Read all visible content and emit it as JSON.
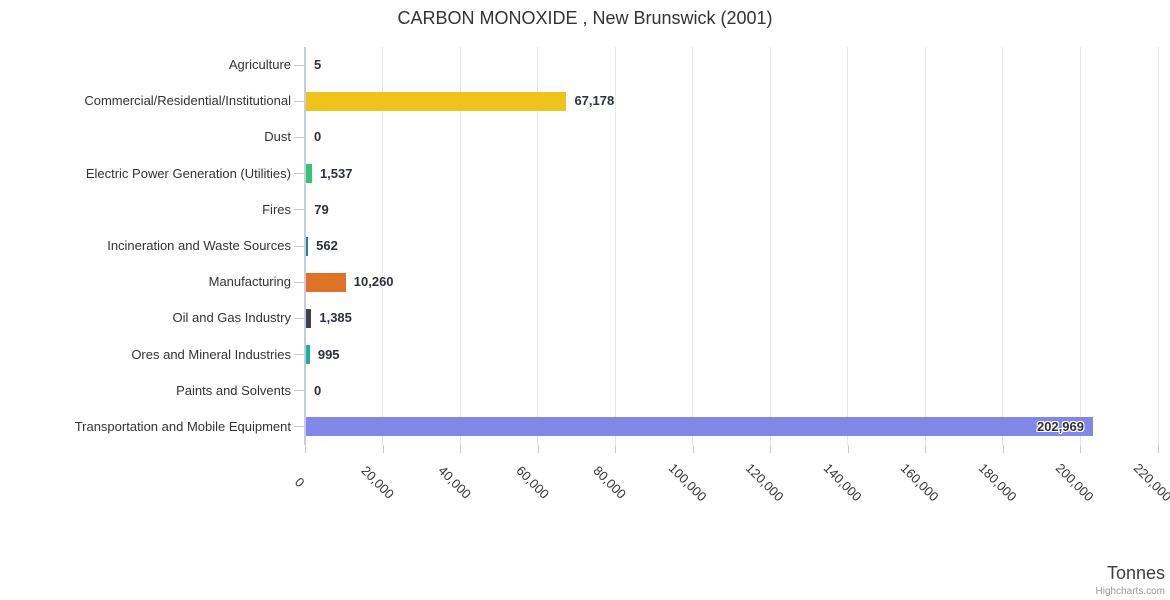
{
  "title": "CARBON MONOXIDE , New Brunswick (2001)",
  "x_axis_title": "Tonnes",
  "credits": "Highcharts.com",
  "colors": {
    "grid": "#e6e6e6",
    "axis_line": "#c6cce3",
    "tick": "#c8c8c8",
    "label_text": "#333333",
    "value_text": "#2e303c"
  },
  "chart_data": {
    "type": "bar",
    "orientation": "horizontal",
    "title": "CARBON MONOXIDE , New Brunswick (2001)",
    "xlabel": "Tonnes",
    "ylabel": "",
    "xlim": [
      0,
      220000
    ],
    "tick_interval": 20000,
    "grid": true,
    "legend": false,
    "x_tick_labels": [
      "0",
      "20,000",
      "40,000",
      "60,000",
      "80,000",
      "100,000",
      "120,000",
      "140,000",
      "160,000",
      "180,000",
      "200,000",
      "220,000"
    ],
    "categories": [
      "Agriculture",
      "Commercial/Residential/Institutional",
      "Dust",
      "Electric Power Generation (Utilities)",
      "Fires",
      "Incineration and Waste Sources",
      "Manufacturing",
      "Oil and Gas Industry",
      "Ores and Mineral Industries",
      "Paints and Solvents",
      "Transportation and Mobile Equipment"
    ],
    "values": [
      5,
      67178,
      0,
      1537,
      79,
      562,
      10260,
      1385,
      995,
      0,
      202969
    ],
    "value_labels": [
      "5",
      "67,178",
      "0",
      "1,537",
      "79",
      "562",
      "10,260",
      "1,385",
      "995",
      "0",
      "202,969"
    ],
    "bar_colors": [
      "#bbbbbb",
      "#eec31c",
      "#bbbbbb",
      "#35c271",
      "#bbbbbb",
      "#2e7d8c",
      "#de7327",
      "#413f4a",
      "#17b2a0",
      "#bbbbbb",
      "#8288e8"
    ]
  }
}
